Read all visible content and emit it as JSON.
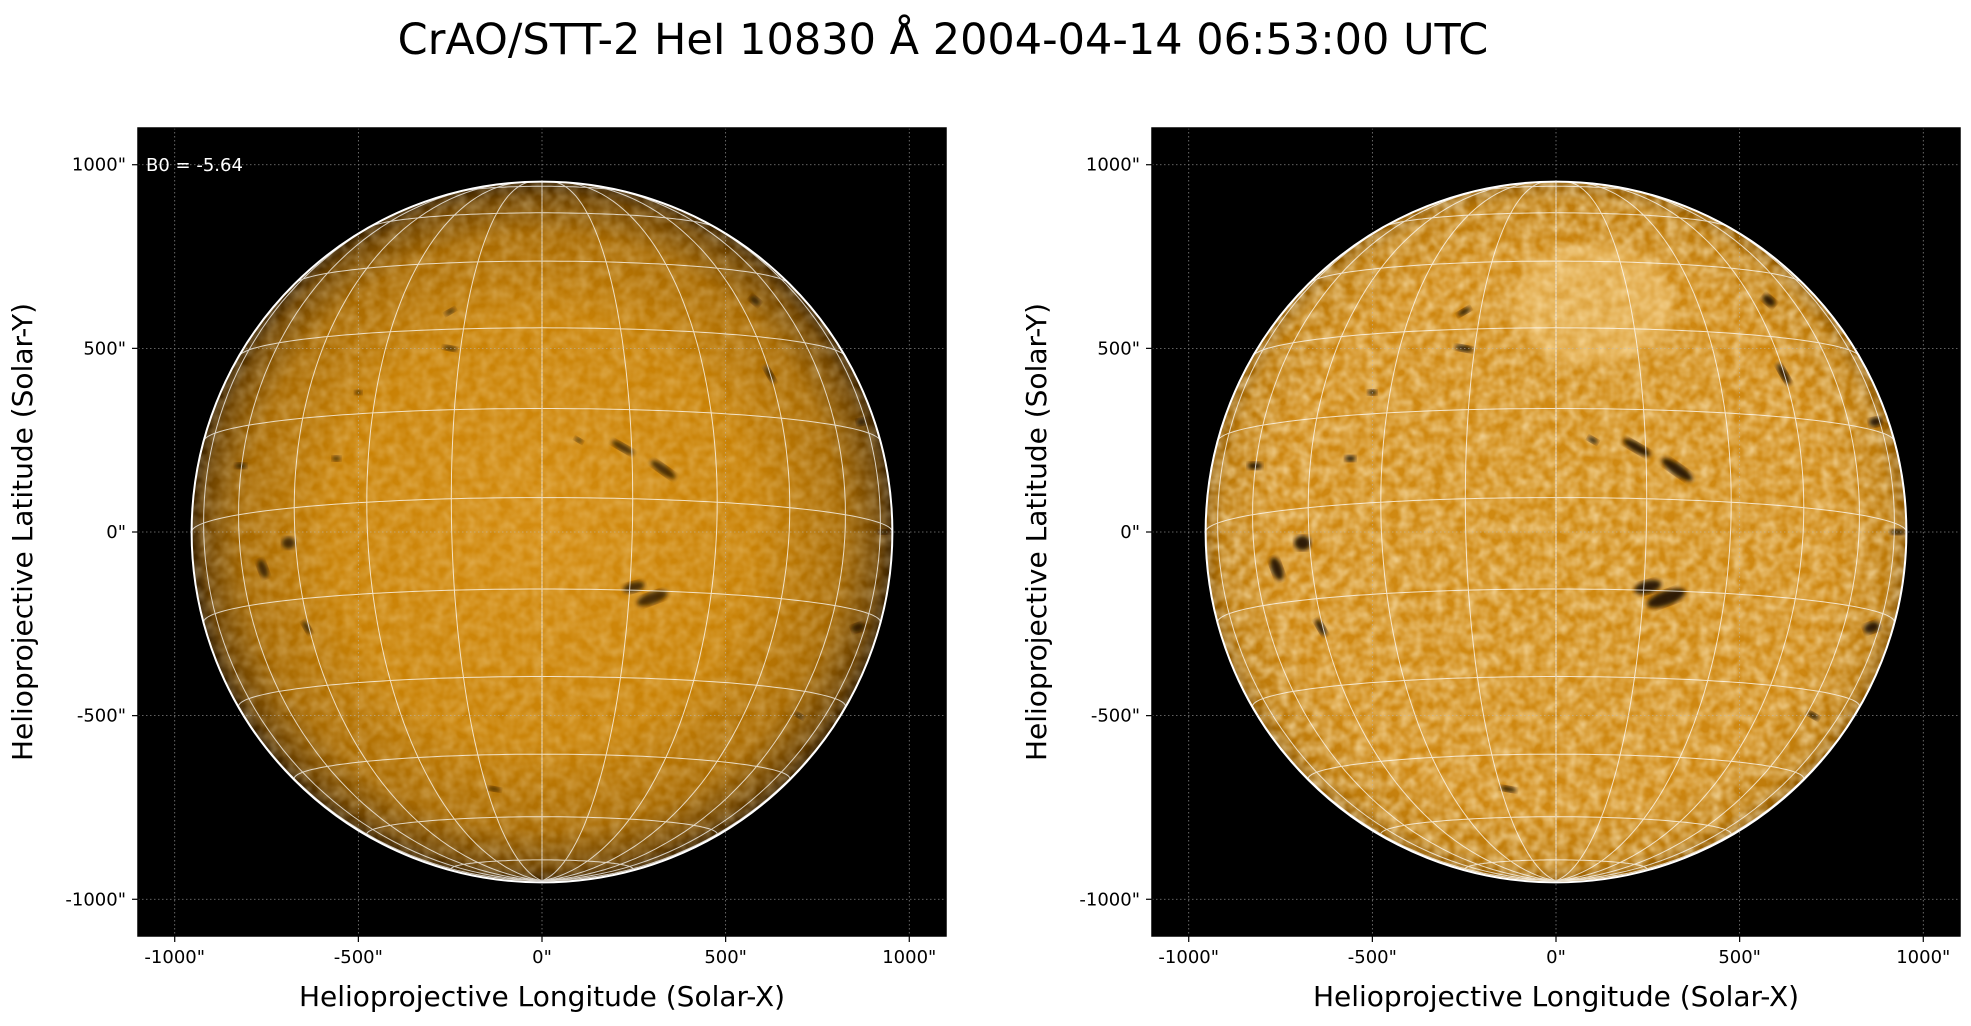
{
  "title": "CrAO/STT-2 HeI 10830 Å 2004-04-14 06:53:00 UTC",
  "colormap": {
    "dark": "#1a0e00",
    "mid": "#c07a00",
    "bright": "#f2a830",
    "highlight": "#ffe6b0"
  },
  "panels": [
    {
      "id": "left",
      "annotation": "B0 = -5.64",
      "xlabel": "Helioprojective Longitude (Solar-X)",
      "ylabel": "Helioprojective Latitude (Solar-Y)",
      "x_ticks": [
        "-1000\"",
        "-500\"",
        "0\"",
        "500\"",
        "1000\""
      ],
      "y_ticks": [
        "1000\"",
        "500\"",
        "0\"",
        "-500\"",
        "-1000\""
      ],
      "image_style": "raw-limb-darkened"
    },
    {
      "id": "right",
      "annotation": "",
      "xlabel": "Helioprojective Longitude (Solar-X)",
      "ylabel": "Helioprojective Latitude (Solar-Y)",
      "x_ticks": [
        "-1000\"",
        "-500\"",
        "0\"",
        "500\"",
        "1000\""
      ],
      "y_ticks": [
        "1000\"",
        "500\"",
        "0\"",
        "-500\"",
        "-1000\""
      ],
      "image_style": "limb-corrected-enhanced"
    }
  ]
}
